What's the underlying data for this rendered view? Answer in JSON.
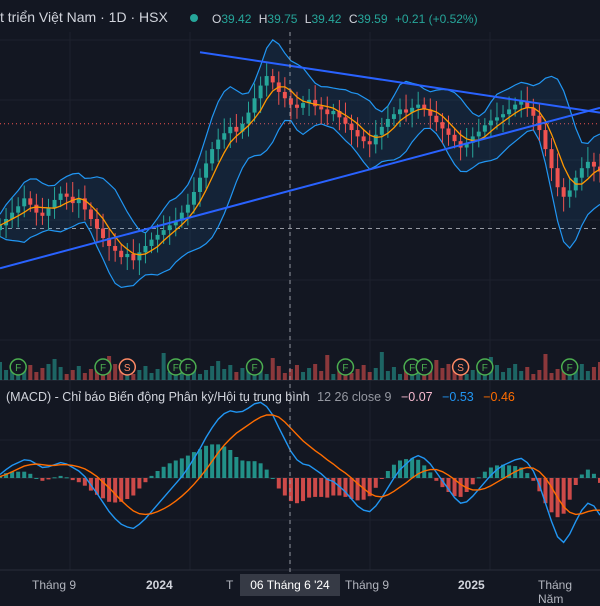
{
  "header": {
    "title": "t triển Việt Nam · 1D · HSX",
    "status_color": "#26a69a",
    "ohlc": {
      "o_key": "O",
      "o": "39.42",
      "h_key": "H",
      "h": "39.75",
      "l_key": "L",
      "l": "39.42",
      "c_key": "C",
      "c": "39.59",
      "change": "+0.21 (+0.52%)"
    }
  },
  "macd_legend": {
    "name": "(MACD) - Chỉ báo Biến động Phân kỳ/Hội tụ trung bình",
    "params": "12 26 close 9",
    "hist": "−0.07",
    "macd": "−0.53",
    "signal": "−0.46"
  },
  "x_axis": {
    "labels": [
      "Tháng 9",
      "2024",
      "T",
      "Tháng 9",
      "2025",
      "Tháng Năm"
    ],
    "crosshair": "06 Tháng 6 '24"
  },
  "markers": [
    {
      "kind": "F"
    },
    {
      "kind": "F"
    },
    {
      "kind": "S"
    },
    {
      "kind": "F"
    },
    {
      "kind": "F"
    },
    {
      "kind": "F"
    },
    {
      "kind": "F"
    },
    {
      "kind": "F"
    },
    {
      "kind": "F"
    },
    {
      "kind": "S"
    },
    {
      "kind": "F"
    },
    {
      "kind": "F"
    }
  ],
  "colors": {
    "up": "#26a69a",
    "down": "#ef5350",
    "trend": "#2962ff",
    "ma": "#ff9800",
    "band": "#2196f3",
    "macd": "#2196f3",
    "signal": "#ff6d00"
  },
  "chart_data": {
    "type": "line",
    "price_series_close": [
      36.2,
      36.6,
      37.0,
      37.4,
      37.9,
      37.5,
      37.0,
      36.8,
      37.3,
      37.8,
      38.2,
      38.0,
      37.6,
      37.9,
      37.2,
      36.6,
      36.0,
      35.4,
      34.9,
      34.6,
      34.2,
      34.4,
      34.0,
      34.5,
      34.9,
      35.3,
      35.6,
      35.9,
      36.2,
      36.5,
      37.0,
      37.5,
      38.3,
      39.2,
      40.1,
      41.0,
      41.6,
      42.0,
      42.4,
      42.1,
      42.6,
      43.3,
      44.2,
      45.0,
      45.6,
      45.2,
      44.6,
      44.2,
      43.8,
      43.6,
      43.9,
      44.1,
      43.7,
      43.5,
      43.2,
      43.4,
      43.0,
      42.6,
      42.2,
      41.8,
      41.5,
      41.3,
      41.9,
      42.4,
      42.9,
      43.2,
      43.5,
      43.3,
      43.6,
      43.8,
      43.5,
      43.1,
      42.7,
      42.3,
      41.9,
      41.5,
      41.1,
      41.4,
      41.8,
      42.1,
      42.5,
      42.8,
      43.0,
      43.2,
      43.5,
      43.8,
      44.0,
      43.6,
      43.1,
      42.2,
      41.0,
      39.8,
      38.6,
      38.0,
      38.4,
      39.2,
      39.8,
      40.2,
      39.9,
      39.59
    ],
    "trendlines": [
      {
        "from": {
          "index": 0,
          "price": 33.5
        },
        "to": {
          "index": 99,
          "price": 43.6
        }
      },
      {
        "from": {
          "index": 33,
          "price": 47.1
        },
        "to": {
          "index": 99,
          "price": 43.3
        }
      }
    ],
    "macd": {
      "macd_line": [
        0.05,
        0.12,
        0.18,
        0.22,
        0.26,
        0.25,
        0.2,
        0.15,
        0.16,
        0.19,
        0.22,
        0.2,
        0.15,
        0.1,
        0.02,
        -0.1,
        -0.22,
        -0.35,
        -0.48,
        -0.58,
        -0.66,
        -0.7,
        -0.72,
        -0.66,
        -0.58,
        -0.48,
        -0.38,
        -0.28,
        -0.18,
        -0.08,
        0.02,
        0.14,
        0.28,
        0.42,
        0.58,
        0.72,
        0.84,
        0.92,
        0.96,
        0.94,
        0.95,
        1.0,
        1.06,
        1.08,
        1.02,
        0.9,
        0.72,
        0.55,
        0.38,
        0.26,
        0.2,
        0.18,
        0.12,
        0.06,
        -0.02,
        -0.05,
        -0.12,
        -0.2,
        -0.3,
        -0.4,
        -0.46,
        -0.48,
        -0.4,
        -0.28,
        -0.14,
        0.0,
        0.12,
        0.2,
        0.28,
        0.32,
        0.28,
        0.2,
        0.08,
        -0.04,
        -0.16,
        -0.28,
        -0.36,
        -0.34,
        -0.26,
        -0.16,
        -0.06,
        0.04,
        0.12,
        0.18,
        0.22,
        0.26,
        0.28,
        0.22,
        0.1,
        -0.1,
        -0.36,
        -0.62,
        -0.84,
        -0.92,
        -0.8,
        -0.62,
        -0.46,
        -0.36,
        -0.4,
        -0.53
      ],
      "signal_line": [
        0.02,
        0.05,
        0.09,
        0.13,
        0.17,
        0.19,
        0.2,
        0.19,
        0.18,
        0.18,
        0.19,
        0.19,
        0.18,
        0.16,
        0.13,
        0.08,
        0.02,
        -0.06,
        -0.14,
        -0.23,
        -0.32,
        -0.4,
        -0.47,
        -0.51,
        -0.52,
        -0.51,
        -0.48,
        -0.44,
        -0.39,
        -0.33,
        -0.26,
        -0.18,
        -0.09,
        0.01,
        0.12,
        0.24,
        0.36,
        0.47,
        0.56,
        0.64,
        0.7,
        0.76,
        0.82,
        0.87,
        0.9,
        0.9,
        0.87,
        0.8,
        0.71,
        0.62,
        0.53,
        0.46,
        0.39,
        0.33,
        0.26,
        0.2,
        0.13,
        0.07,
        0.0,
        -0.08,
        -0.15,
        -0.22,
        -0.26,
        -0.27,
        -0.24,
        -0.19,
        -0.13,
        -0.07,
        -0.0,
        0.06,
        0.1,
        0.12,
        0.12,
        0.09,
        0.04,
        -0.02,
        -0.09,
        -0.14,
        -0.17,
        -0.17,
        -0.15,
        -0.11,
        -0.06,
        -0.01,
        0.04,
        0.09,
        0.13,
        0.15,
        0.14,
        0.09,
        0.0,
        -0.13,
        -0.28,
        -0.41,
        -0.49,
        -0.52,
        -0.51,
        -0.48,
        -0.46,
        -0.46
      ]
    },
    "xlabel": "",
    "ylabel": ""
  }
}
